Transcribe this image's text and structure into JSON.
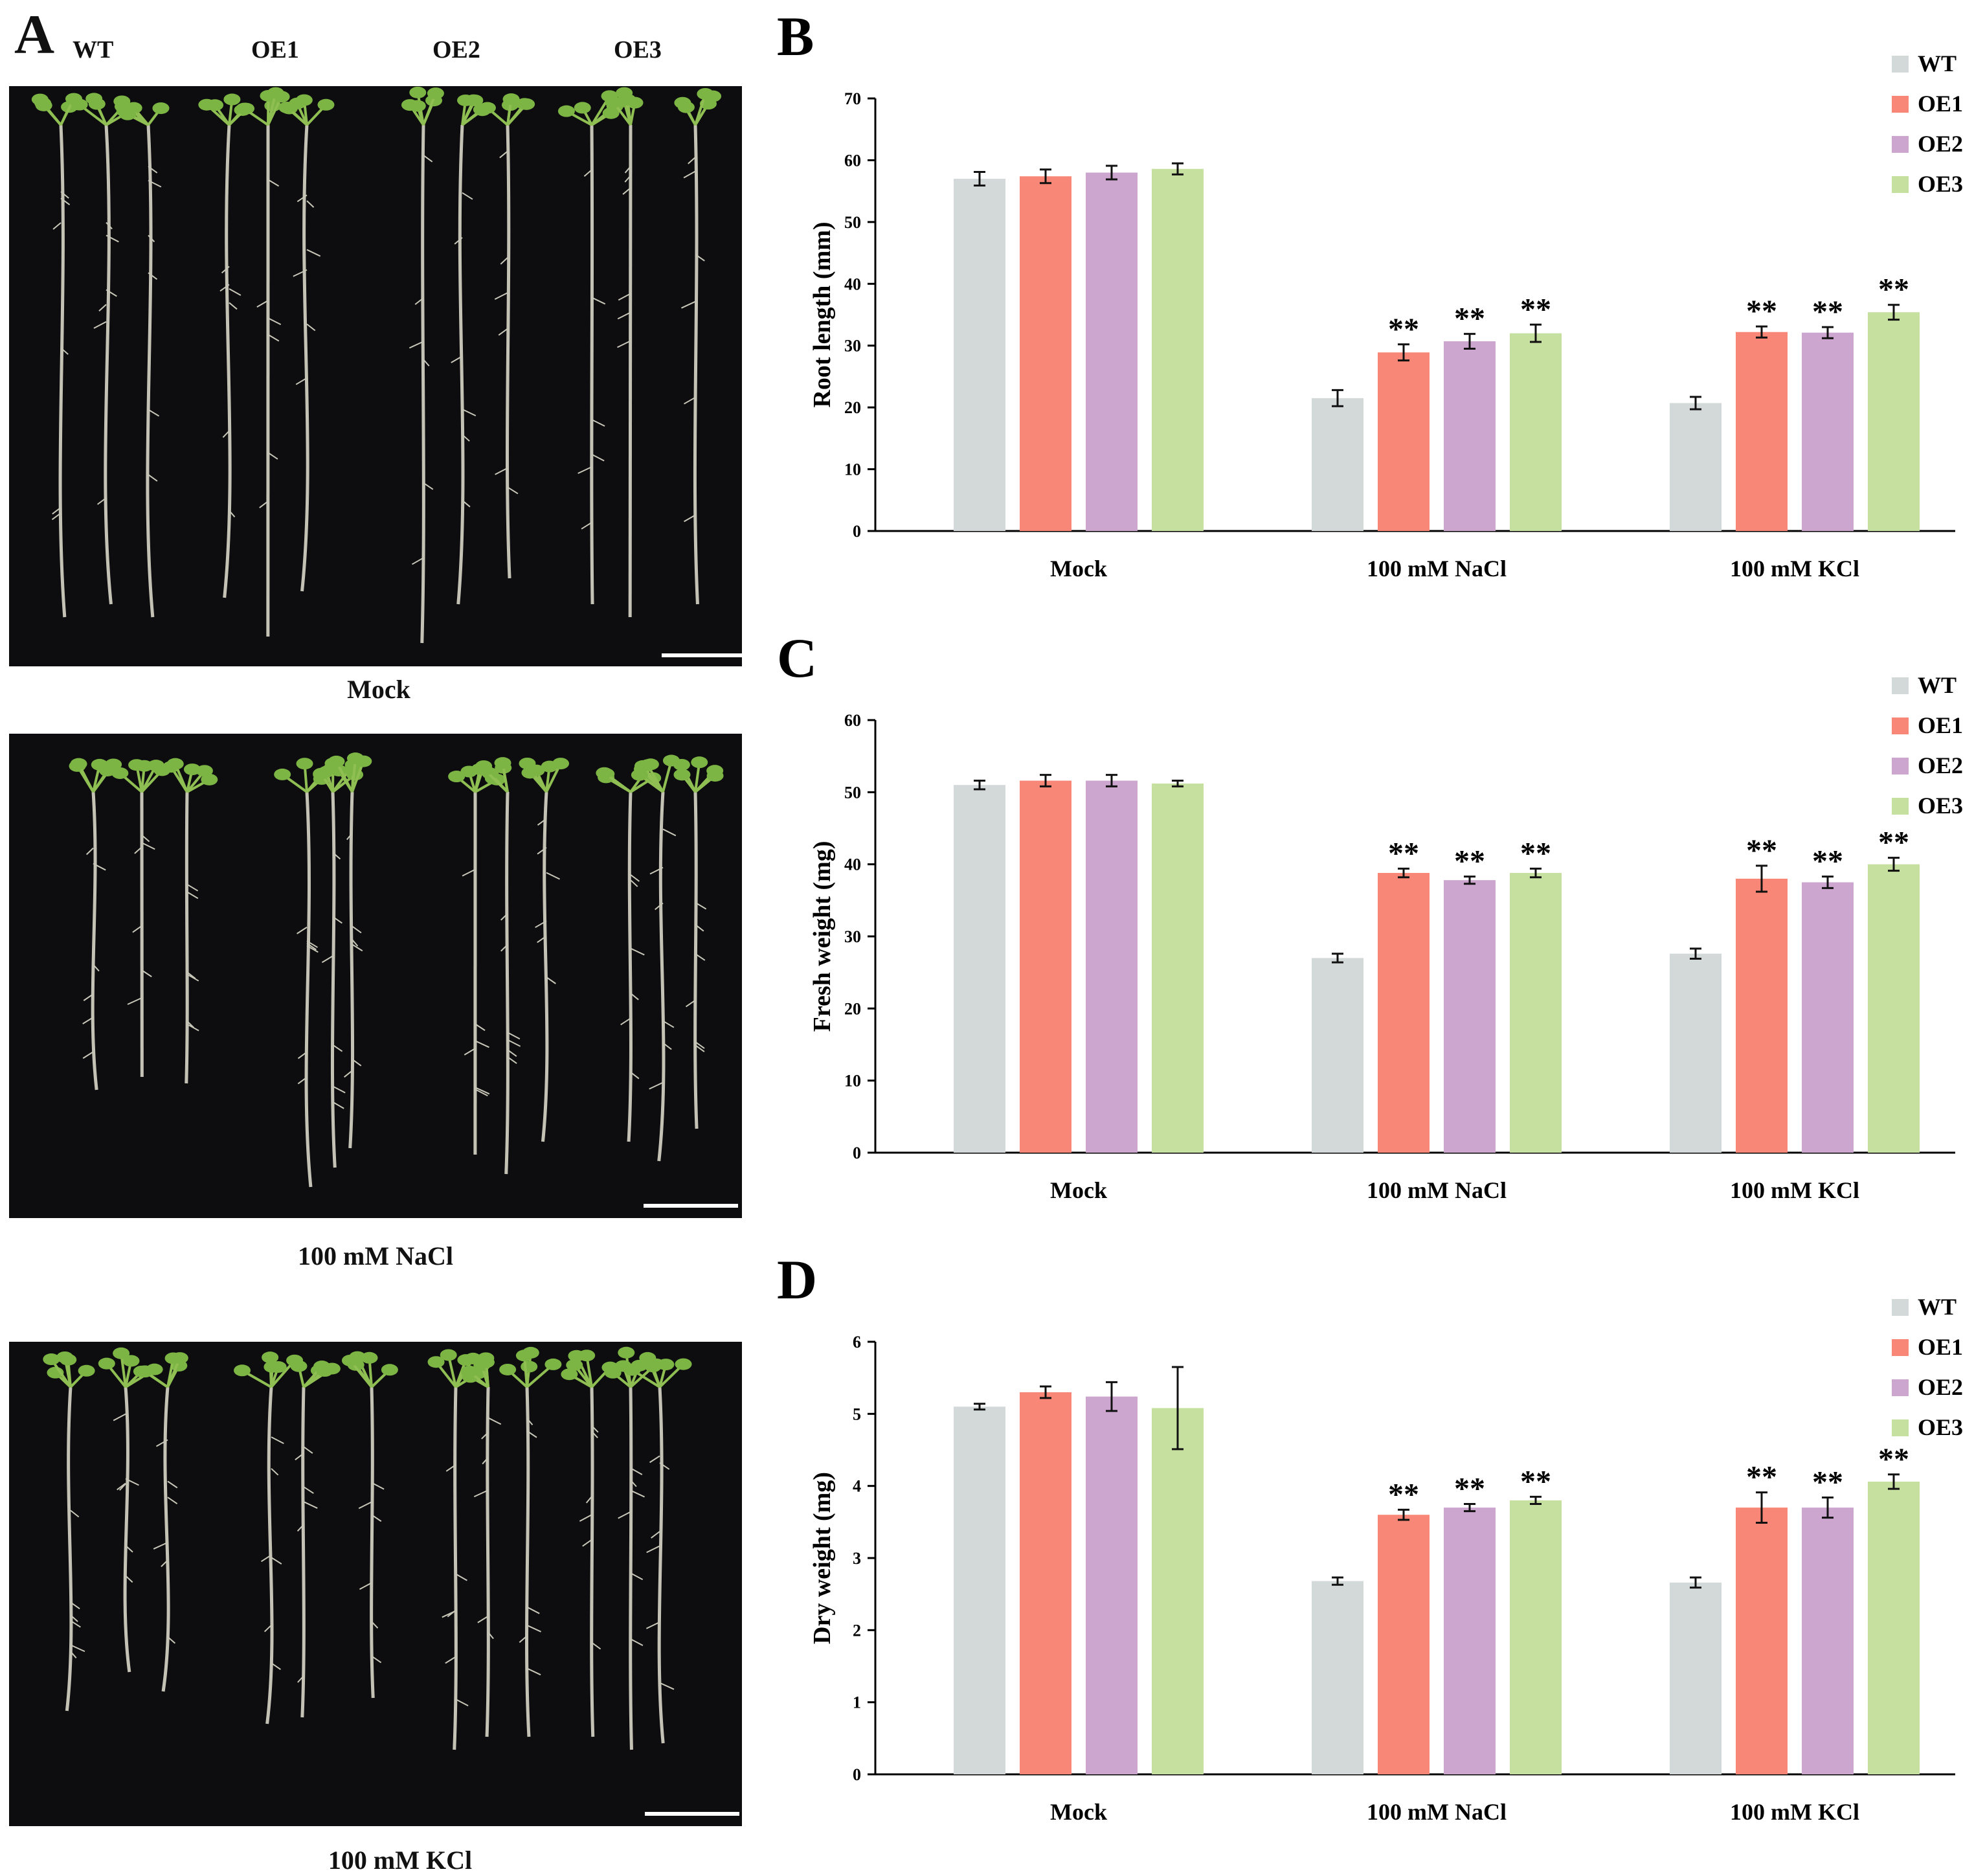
{
  "panel_a": {
    "letter": "A",
    "genotypes": [
      "WT",
      "OE1",
      "OE2",
      "OE3"
    ],
    "captions": [
      "Mock",
      "100 mM NaCl",
      "100 mM KCl"
    ]
  },
  "chart_data": [
    {
      "panel": "B",
      "type": "bar",
      "title": "",
      "categories": [
        "Mock",
        "100 mM NaCl",
        "100 mM KCl"
      ],
      "xlabel": "",
      "ylabel": "Root length (mm)",
      "ylim": [
        0,
        70
      ],
      "yticks": [
        "0",
        "10",
        "20",
        "30",
        "40",
        "50",
        "60",
        "70"
      ],
      "legend_position": "top-right",
      "series": [
        {
          "name": "WT",
          "color": "#d3d9d8",
          "values": [
            57.0,
            21.5,
            20.7
          ],
          "errors": [
            1.1,
            1.3,
            1.0
          ],
          "sig": [
            "",
            "",
            ""
          ]
        },
        {
          "name": "OE1",
          "color": "#f98777",
          "values": [
            57.4,
            28.9,
            32.2
          ],
          "errors": [
            1.1,
            1.3,
            0.9
          ],
          "sig": [
            "",
            "**",
            "**"
          ]
        },
        {
          "name": "OE2",
          "color": "#cda6d0",
          "values": [
            58.0,
            30.7,
            32.1
          ],
          "errors": [
            1.1,
            1.2,
            0.9
          ],
          "sig": [
            "",
            "**",
            "**"
          ]
        },
        {
          "name": "OE3",
          "color": "#c6e0a0",
          "values": [
            58.6,
            32.0,
            35.4
          ],
          "errors": [
            0.9,
            1.4,
            1.2
          ],
          "sig": [
            "",
            "**",
            "**"
          ]
        }
      ]
    },
    {
      "panel": "C",
      "type": "bar",
      "title": "",
      "categories": [
        "Mock",
        "100 mM NaCl",
        "100 mM KCl"
      ],
      "xlabel": "",
      "ylabel": "Fresh weight (mg)",
      "ylim": [
        0,
        60
      ],
      "yticks": [
        "0",
        "10",
        "20",
        "30",
        "40",
        "50",
        "60"
      ],
      "legend_position": "top-right",
      "series": [
        {
          "name": "WT",
          "color": "#d3d9d8",
          "values": [
            51.0,
            27.0,
            27.6
          ],
          "errors": [
            0.6,
            0.6,
            0.7
          ],
          "sig": [
            "",
            "",
            ""
          ]
        },
        {
          "name": "OE1",
          "color": "#f98777",
          "values": [
            51.6,
            38.8,
            38.0
          ],
          "errors": [
            0.8,
            0.6,
            1.8
          ],
          "sig": [
            "",
            "**",
            "**"
          ]
        },
        {
          "name": "OE2",
          "color": "#cda6d0",
          "values": [
            51.6,
            37.8,
            37.5
          ],
          "errors": [
            0.8,
            0.5,
            0.8
          ],
          "sig": [
            "",
            "**",
            "**"
          ]
        },
        {
          "name": "OE3",
          "color": "#c6e0a0",
          "values": [
            51.2,
            38.8,
            40.0
          ],
          "errors": [
            0.4,
            0.6,
            0.9
          ],
          "sig": [
            "",
            "**",
            "**"
          ]
        }
      ]
    },
    {
      "panel": "D",
      "type": "bar",
      "title": "",
      "categories": [
        "Mock",
        "100 mM NaCl",
        "100 mM KCl"
      ],
      "xlabel": "",
      "ylabel": "Dry weight (mg)",
      "ylim": [
        0,
        6
      ],
      "yticks": [
        "0",
        "1",
        "2",
        "3",
        "4",
        "5",
        "6"
      ],
      "legend_position": "top-right",
      "series": [
        {
          "name": "WT",
          "color": "#d3d9d8",
          "values": [
            5.1,
            2.68,
            2.66
          ],
          "errors": [
            0.04,
            0.05,
            0.07
          ],
          "sig": [
            "",
            "",
            ""
          ]
        },
        {
          "name": "OE1",
          "color": "#f98777",
          "values": [
            5.3,
            3.6,
            3.7
          ],
          "errors": [
            0.08,
            0.07,
            0.21
          ],
          "sig": [
            "",
            "**",
            "**"
          ]
        },
        {
          "name": "OE2",
          "color": "#cda6d0",
          "values": [
            5.24,
            3.7,
            3.7
          ],
          "errors": [
            0.2,
            0.05,
            0.14
          ],
          "sig": [
            "",
            "**",
            "**"
          ]
        },
        {
          "name": "OE3",
          "color": "#c6e0a0",
          "values": [
            5.08,
            3.8,
            4.06
          ],
          "errors": [
            0.57,
            0.05,
            0.1
          ],
          "sig": [
            "",
            "**",
            "**"
          ]
        }
      ]
    }
  ]
}
